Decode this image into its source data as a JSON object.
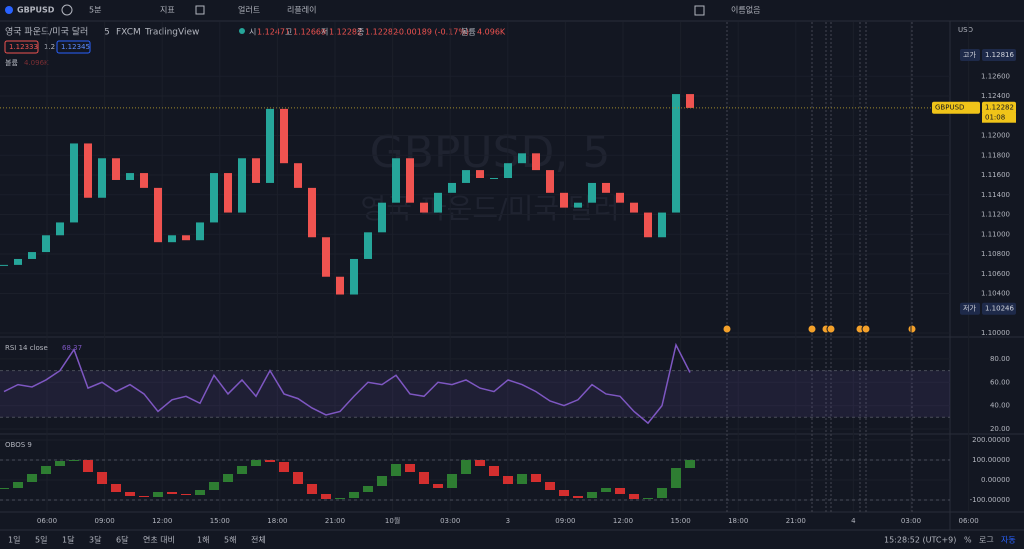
{
  "toolbar": {
    "symbol": "GBPUSD",
    "interval": "5분",
    "indicators": "지표",
    "alert": "얼러트",
    "replay": "리플레이",
    "layout": "이름없음"
  },
  "legend": {
    "name": "영국 파운드/미국 달러",
    "interval": "5",
    "exchange": "FXCM",
    "source": "TradingView",
    "o_label": "시",
    "o": "1.12471",
    "h_label": "고",
    "h": "1.12669",
    "l_label": "저",
    "l": "1.12282",
    "c_label": "종",
    "c": "1.12282",
    "change": "-0.00189 (-0.17%)",
    "vol_label": "볼륨",
    "vol": "4.096K",
    "bid": "1.12333",
    "spread": "1.2",
    "ask": "1.12345",
    "vol_row_label": "볼륨",
    "vol_row_value": "4.096K"
  },
  "watermark": {
    "symbol": "GBPUSD, 5",
    "name": "영국 파운드/미국 달러"
  },
  "price_axis": {
    "currency": "USD",
    "high_label": "고가",
    "high": "1.12816",
    "symbol": "GBPUSD",
    "last": "1.12282",
    "countdown": "01:08",
    "low_label": "저가",
    "low": "1.10246"
  },
  "time_axis": {
    "labels": [
      "06:00",
      "09:00",
      "12:00",
      "15:00",
      "18:00",
      "21:00",
      "10월",
      "03:00",
      "3",
      "09:00",
      "12:00",
      "15:00",
      "18:00",
      "21:00",
      "4",
      "03:00",
      "06:00"
    ]
  },
  "chart_data": [
    {
      "type": "candlestick",
      "title": "GBPUSD",
      "values": [
        1.1069,
        1.1075,
        1.1082,
        1.1099,
        1.1112,
        1.1192,
        1.1137,
        1.1177,
        1.1155,
        1.1162,
        1.1147,
        1.1092,
        1.1099,
        1.1094,
        1.1112,
        1.1162,
        1.1122,
        1.1177,
        1.1152,
        1.1227,
        1.1172,
        1.1147,
        1.1097,
        1.1057,
        1.1039,
        1.1075,
        1.1102,
        1.1132,
        1.1177,
        1.1132,
        1.1122,
        1.1142,
        1.1152,
        1.1165,
        1.1157,
        1.1157,
        1.1172,
        1.1182,
        1.1165,
        1.1142,
        1.1127,
        1.1132,
        1.1152,
        1.1142,
        1.1132,
        1.1122,
        1.1097,
        1.1122,
        1.1242,
        1.1228
      ],
      "up_color": "#26a69a",
      "down_color": "#ef5350",
      "ylim": [
        1.0998,
        1.1315
      ],
      "yticks": [
        {
          "value": 1.126,
          "label": "1.12600"
        },
        {
          "value": 1.124,
          "label": "1.12400"
        },
        {
          "value": 1.12,
          "label": "1.12000"
        },
        {
          "value": 1.118,
          "label": "1.11800"
        },
        {
          "value": 1.116,
          "label": "1.11600"
        },
        {
          "value": 1.114,
          "label": "1.11400"
        },
        {
          "value": 1.112,
          "label": "1.11200"
        },
        {
          "value": 1.11,
          "label": "1.11000"
        },
        {
          "value": 1.108,
          "label": "1.10800"
        },
        {
          "value": 1.106,
          "label": "1.10600"
        },
        {
          "value": 1.104,
          "label": "1.10400"
        },
        {
          "value": 1.1,
          "label": "1.10000"
        }
      ]
    },
    {
      "type": "line",
      "title": "RSI 14 close",
      "last_label": "68.37",
      "color": "#7e57c2",
      "values": [
        52,
        58,
        56,
        62,
        70,
        88,
        55,
        60,
        52,
        58,
        50,
        35,
        45,
        48,
        42,
        66,
        50,
        62,
        48,
        70,
        50,
        46,
        38,
        32,
        35,
        48,
        60,
        58,
        66,
        50,
        48,
        60,
        58,
        62,
        55,
        52,
        62,
        58,
        52,
        44,
        40,
        45,
        58,
        50,
        48,
        35,
        25,
        40,
        92,
        68.37
      ],
      "band": [
        30,
        70
      ],
      "ylim": [
        17.4,
        96.2
      ],
      "yticks": [
        {
          "value": 80,
          "label": "80.00"
        },
        {
          "value": 60,
          "label": "60.00"
        },
        {
          "value": 40,
          "label": "40.00"
        },
        {
          "value": 20,
          "label": "20.00"
        }
      ]
    },
    {
      "type": "bar",
      "title": "OBOS 9",
      "up_color": "#2e7d32",
      "down_color": "#d32f2f",
      "values": [
        -40,
        -10,
        30,
        70,
        95,
        100,
        40,
        -20,
        -60,
        -80,
        -85,
        -60,
        -70,
        -75,
        -50,
        -10,
        30,
        70,
        100,
        90,
        40,
        -20,
        -70,
        -95,
        -90,
        -60,
        -30,
        20,
        80,
        40,
        -20,
        -40,
        30,
        100,
        70,
        20,
        -20,
        30,
        -10,
        -50,
        -80,
        -90,
        -60,
        -40,
        -70,
        -95,
        -90,
        -40,
        60,
        100
      ],
      "levels": [
        100,
        -100
      ],
      "ylim": [
        -160,
        215
      ],
      "yticks": [
        {
          "value": 200,
          "label": "200.00000"
        },
        {
          "value": 100,
          "label": "100.00000"
        },
        {
          "value": 0,
          "label": "0.00000"
        },
        {
          "value": -100,
          "label": "-100.00000"
        }
      ]
    }
  ],
  "bottom_bar": {
    "ranges": [
      "1일",
      "5일",
      "1달",
      "3달",
      "6달",
      "연초 대비",
      "1해",
      "5해",
      "전체"
    ],
    "clock": "15:28:52 (UTC+9)",
    "percent": "%",
    "log": "로그",
    "auto": "자동"
  }
}
